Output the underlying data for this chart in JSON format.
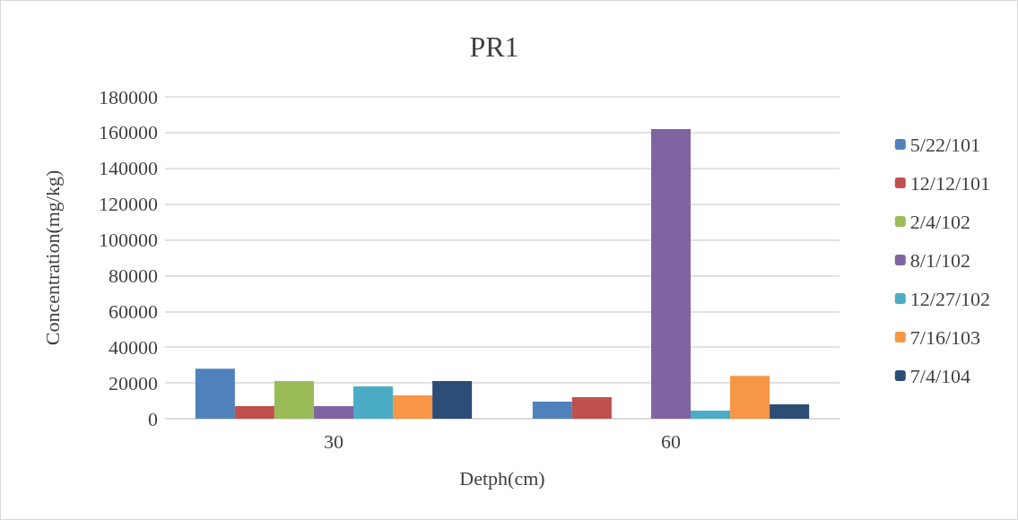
{
  "chart_data": {
    "type": "bar",
    "title": "PR1",
    "xlabel": "Detph(cm)",
    "ylabel": "Concentration(mg/kg)",
    "categories": [
      "30",
      "60"
    ],
    "series": [
      {
        "name": "5/22/101",
        "color": "#4f81bd",
        "values": [
          28000,
          9500
        ]
      },
      {
        "name": "12/12/101",
        "color": "#c0504d",
        "values": [
          7000,
          12000
        ]
      },
      {
        "name": "2/4/102",
        "color": "#9bbb59",
        "values": [
          21000,
          null
        ]
      },
      {
        "name": "8/1/102",
        "color": "#8064a2",
        "values": [
          7000,
          162000
        ]
      },
      {
        "name": "12/27/102",
        "color": "#4bacc6",
        "values": [
          18000,
          4500
        ]
      },
      {
        "name": "7/16/103",
        "color": "#f79646",
        "values": [
          13000,
          24000
        ]
      },
      {
        "name": "7/4/104",
        "color": "#2c4d75",
        "values": [
          21000,
          8000
        ]
      }
    ],
    "ylim": [
      0,
      180000
    ],
    "yticks": [
      0,
      20000,
      40000,
      60000,
      80000,
      100000,
      120000,
      140000,
      160000,
      180000
    ],
    "grid": "y",
    "legend": "right"
  }
}
